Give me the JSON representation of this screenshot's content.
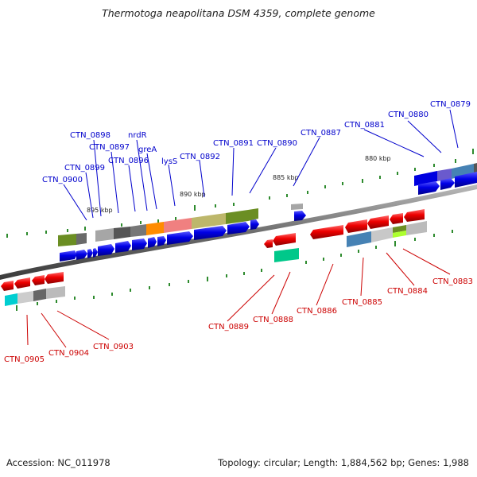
{
  "title": "Thermotoga neapolitana DSM 4359, complete genome",
  "footer": {
    "accession": "Accession: NC_011978",
    "summary": "Topology: circular; Length: 1,884,562 bp; Genes: 1,988"
  },
  "colors": {
    "forward_label": "#0000cc",
    "reverse_label": "#cc0000",
    "forward_gene": "#0000e0",
    "reverse_gene": "#e00000",
    "backbone": "#777777",
    "tick": "#2e8b2e"
  },
  "ticks": [
    {
      "label": "895 kbp"
    },
    {
      "label": "890 kbp"
    },
    {
      "label": "885 kbp"
    },
    {
      "label": "880 kbp"
    }
  ],
  "forward_labels": [
    {
      "text": "CTN_0898"
    },
    {
      "text": "nrdR"
    },
    {
      "text": "CTN_0897"
    },
    {
      "text": "greA"
    },
    {
      "text": "CTN_0896"
    },
    {
      "text": "lysS"
    },
    {
      "text": "CTN_0899"
    },
    {
      "text": "CTN_0900"
    },
    {
      "text": "CTN_0892"
    },
    {
      "text": "CTN_0891"
    },
    {
      "text": "CTN_0890"
    },
    {
      "text": "CTN_0887"
    },
    {
      "text": "CTN_0881"
    },
    {
      "text": "CTN_0880"
    },
    {
      "text": "CTN_0879"
    }
  ],
  "reverse_labels": [
    {
      "text": "CTN_0883"
    },
    {
      "text": "CTN_0884"
    },
    {
      "text": "CTN_0885"
    },
    {
      "text": "CTN_0886"
    },
    {
      "text": "CTN_0888"
    },
    {
      "text": "CTN_0889"
    },
    {
      "text": "CTN_0903"
    },
    {
      "text": "CTN_0904"
    },
    {
      "text": "CTN_0905"
    }
  ]
}
